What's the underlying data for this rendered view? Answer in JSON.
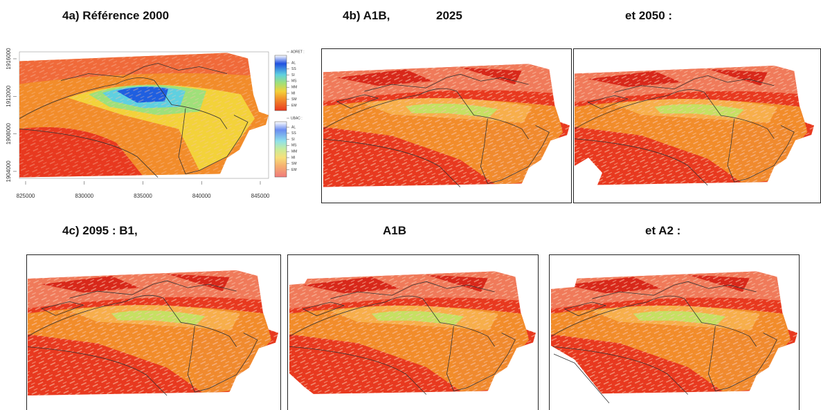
{
  "row_a": {
    "title": "4a) Référence 2000",
    "x_ticks": [
      "825000",
      "830000",
      "835000",
      "840000",
      "845000"
    ],
    "y_ticks": [
      "1916000",
      "1912000",
      "1908000",
      "1904000"
    ],
    "legend": {
      "adret": {
        "title": "ADRET :",
        "classes": [
          "AL",
          "SS",
          "SI",
          "MS",
          "MM",
          "MI",
          "SM",
          "EM"
        ]
      },
      "ubac": {
        "title": "UBAC :",
        "classes": [
          "AL",
          "SS",
          "SI",
          "MS",
          "MM",
          "MI",
          "SM",
          "EM"
        ]
      }
    }
  },
  "row_b": {
    "title": "4b) A1B,",
    "year_1": "2025",
    "year_2": "et 2050 :"
  },
  "row_c": {
    "title": "4c) 2095 : B1,",
    "scenario_2": "A1B",
    "scenario_3": "et A2 :"
  }
}
